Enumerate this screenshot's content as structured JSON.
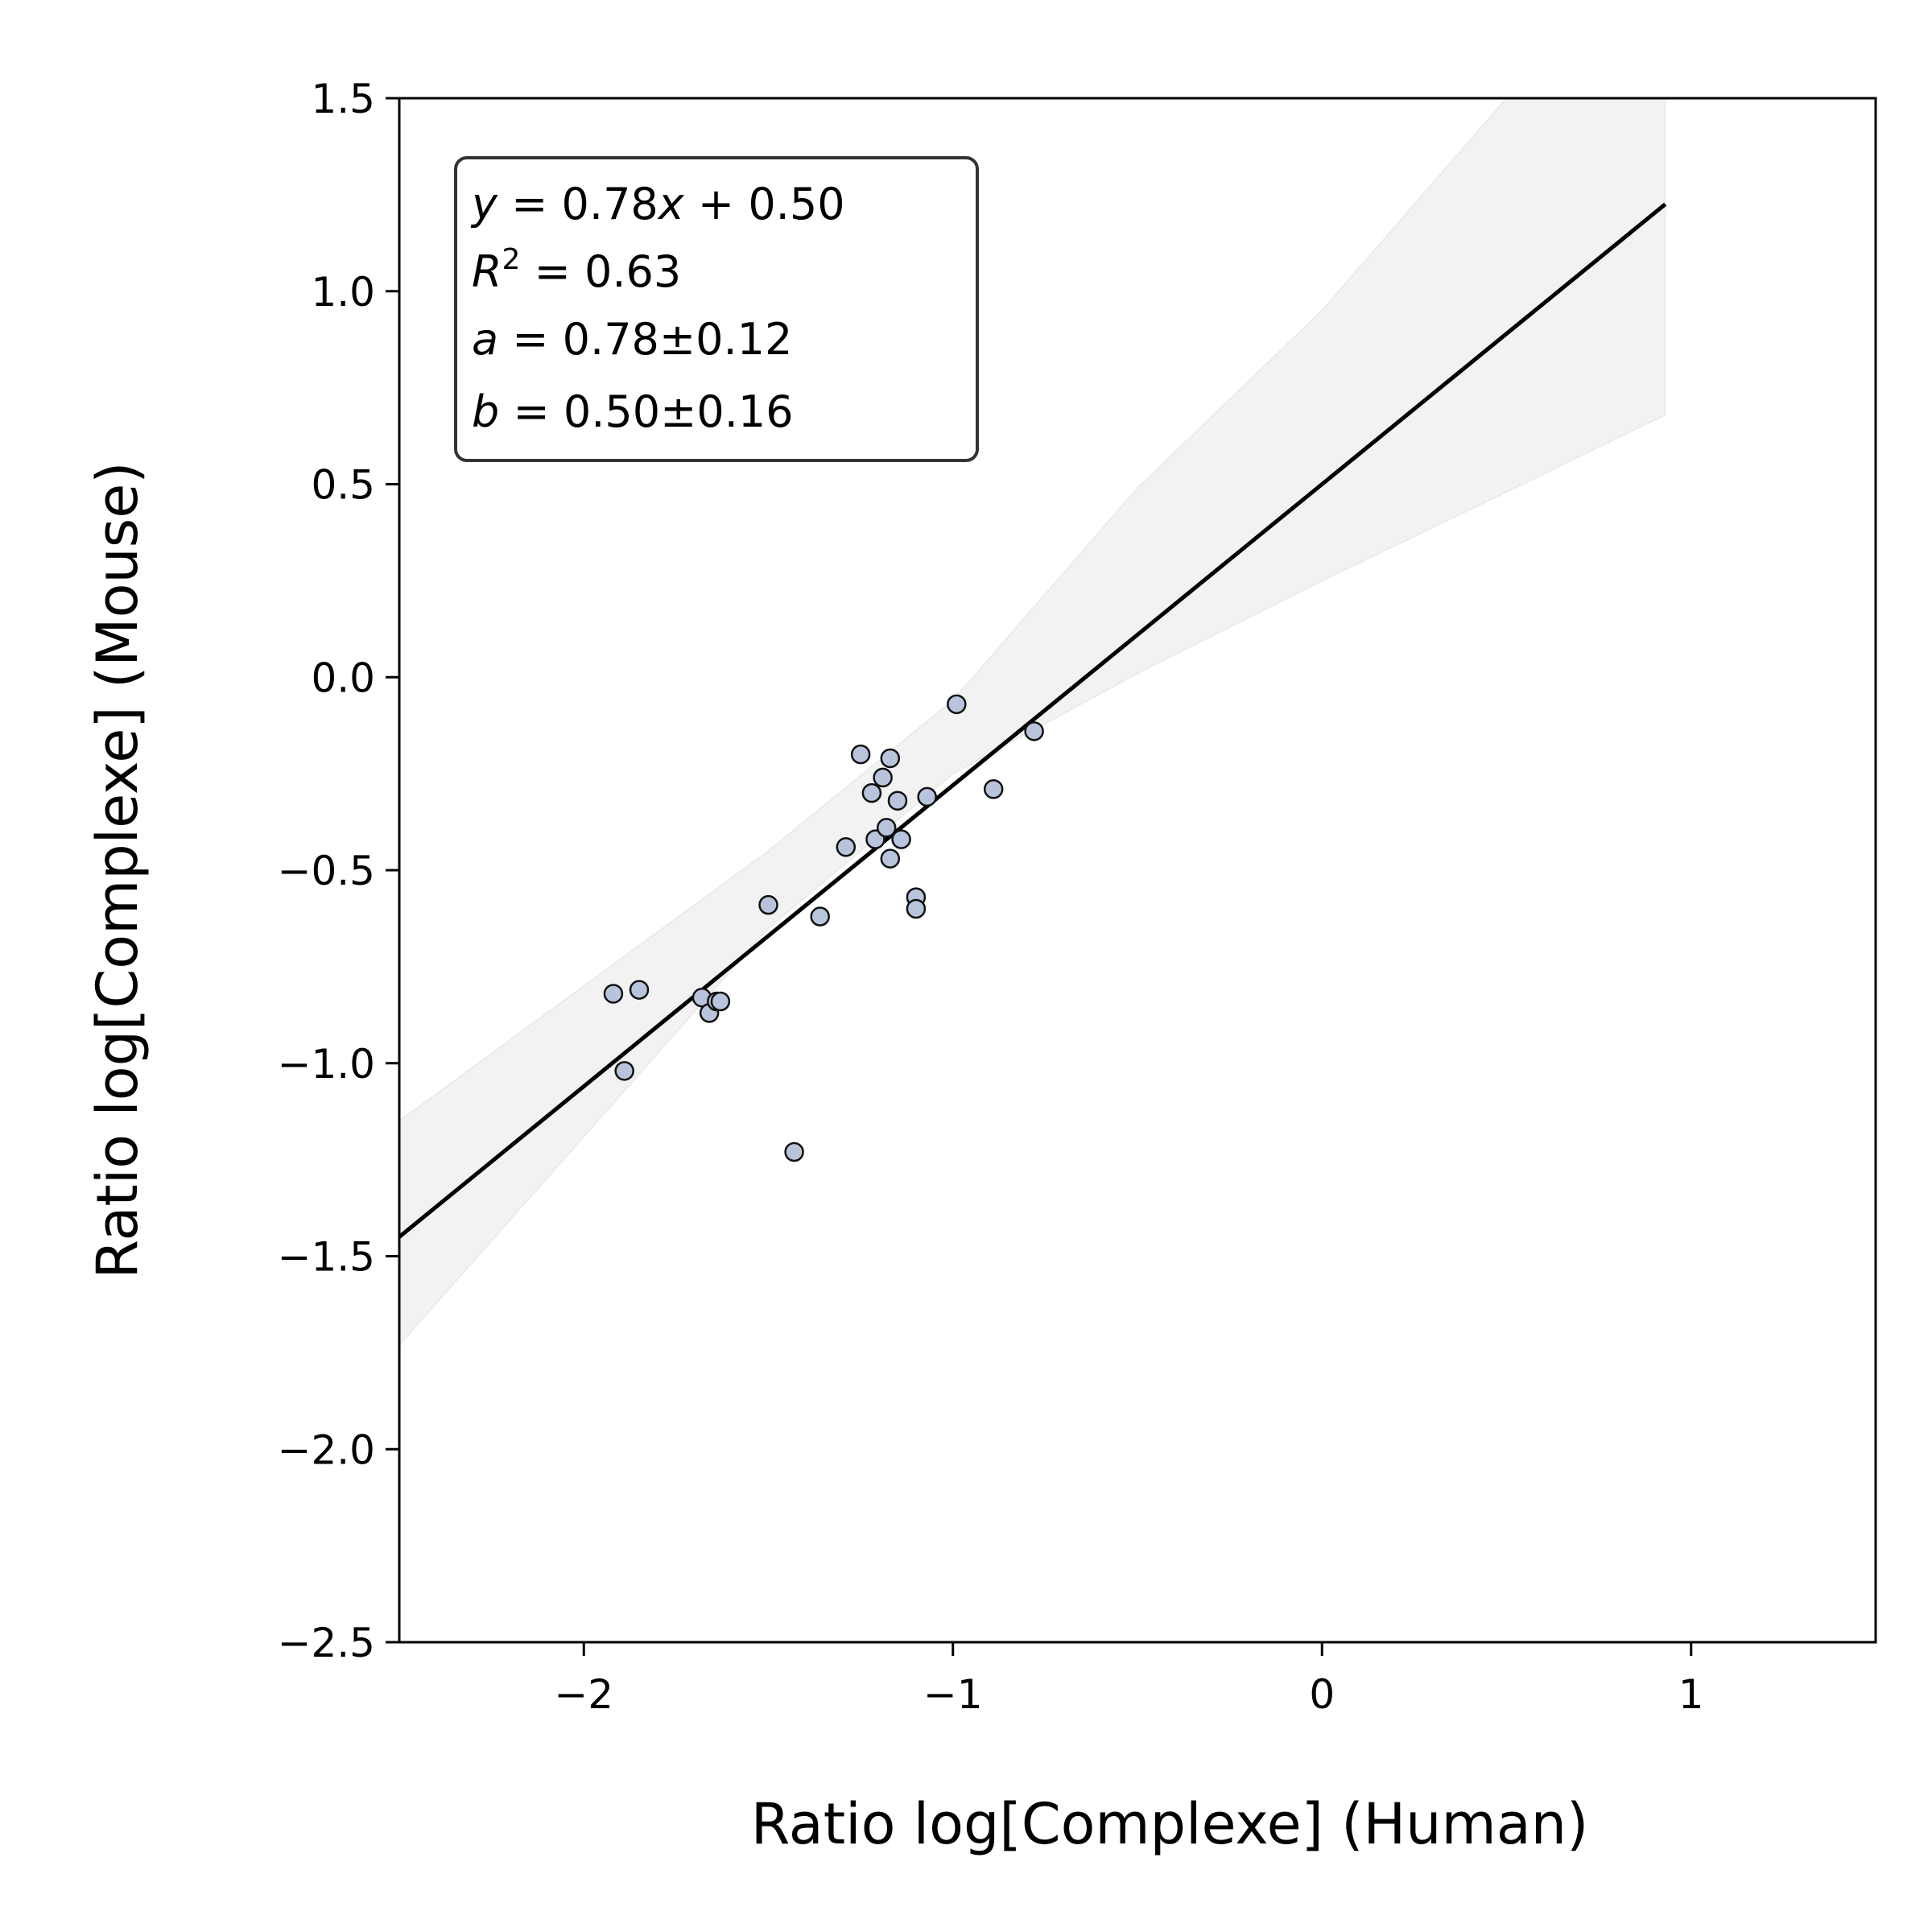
{
  "chart_data": {
    "type": "scatter",
    "title": "",
    "xlabel": "Ratio log[Complexe] (Human)",
    "ylabel": "Ratio log[Complexe] (Mouse)",
    "xlim": [
      -2.5,
      1.5
    ],
    "ylim": [
      -2.5,
      1.5
    ],
    "xticks": [
      -2,
      -1,
      0,
      1
    ],
    "xtick_labels": [
      "−2",
      "−1",
      "0",
      "1"
    ],
    "yticks": [
      1.5,
      1.0,
      0.5,
      0.0,
      -0.5,
      -1.0,
      -1.5,
      -2.0,
      -2.5
    ],
    "ytick_labels": [
      "1.5",
      "1.0",
      "0.5",
      "0.0",
      "−0.5",
      "−1.0",
      "−1.5",
      "−2.0",
      "−2.5"
    ],
    "grid": false,
    "point_color": "#b8c4dc",
    "points": [
      {
        "x": -1.92,
        "y": -0.82
      },
      {
        "x": -1.85,
        "y": -0.81
      },
      {
        "x": -1.89,
        "y": -1.02
      },
      {
        "x": -1.68,
        "y": -0.83
      },
      {
        "x": -1.66,
        "y": -0.87
      },
      {
        "x": -1.64,
        "y": -0.84
      },
      {
        "x": -1.63,
        "y": -0.84
      },
      {
        "x": -1.5,
        "y": -0.59
      },
      {
        "x": -1.36,
        "y": -0.62
      },
      {
        "x": -1.43,
        "y": -1.23
      },
      {
        "x": -1.29,
        "y": -0.44
      },
      {
        "x": -1.25,
        "y": -0.2
      },
      {
        "x": -1.22,
        "y": -0.3
      },
      {
        "x": -1.21,
        "y": -0.42
      },
      {
        "x": -1.19,
        "y": -0.26
      },
      {
        "x": -1.18,
        "y": -0.39
      },
      {
        "x": -1.17,
        "y": -0.21
      },
      {
        "x": -1.17,
        "y": -0.47
      },
      {
        "x": -1.15,
        "y": -0.32
      },
      {
        "x": -1.14,
        "y": -0.42
      },
      {
        "x": -1.1,
        "y": -0.57
      },
      {
        "x": -1.1,
        "y": -0.6
      },
      {
        "x": -1.07,
        "y": -0.31
      },
      {
        "x": -0.99,
        "y": -0.07
      },
      {
        "x": -0.89,
        "y": -0.29
      },
      {
        "x": -0.78,
        "y": -0.14
      }
    ],
    "fit": {
      "slope": 0.78,
      "intercept": 0.5,
      "x_range": [
        -2.5,
        0.93
      ],
      "color": "#000000"
    },
    "confidence_band": {
      "color": "#f2f2f2",
      "x": [
        -2.5,
        -2.0,
        -1.5,
        -1.0,
        -0.5,
        0.0,
        0.5,
        0.93
      ],
      "lower": [
        -1.73,
        -1.19,
        -0.65,
        -0.25,
        0.01,
        0.25,
        0.48,
        0.68
      ],
      "upper": [
        -1.15,
        -0.8,
        -0.45,
        -0.06,
        0.49,
        0.95,
        1.5,
        1.58
      ]
    },
    "legend_placement": "top-left",
    "annotation": {
      "line1": {
        "var": "y",
        "rest": " = 0.78",
        "var2": "x",
        "tail": " + 0.50"
      },
      "line2": {
        "var": "R",
        "sup": "2",
        "rest": " = 0.63"
      },
      "line3": {
        "var": "a",
        "rest": " = 0.78±0.12"
      },
      "line4": {
        "var": "b",
        "rest": " = 0.50±0.16"
      }
    }
  }
}
